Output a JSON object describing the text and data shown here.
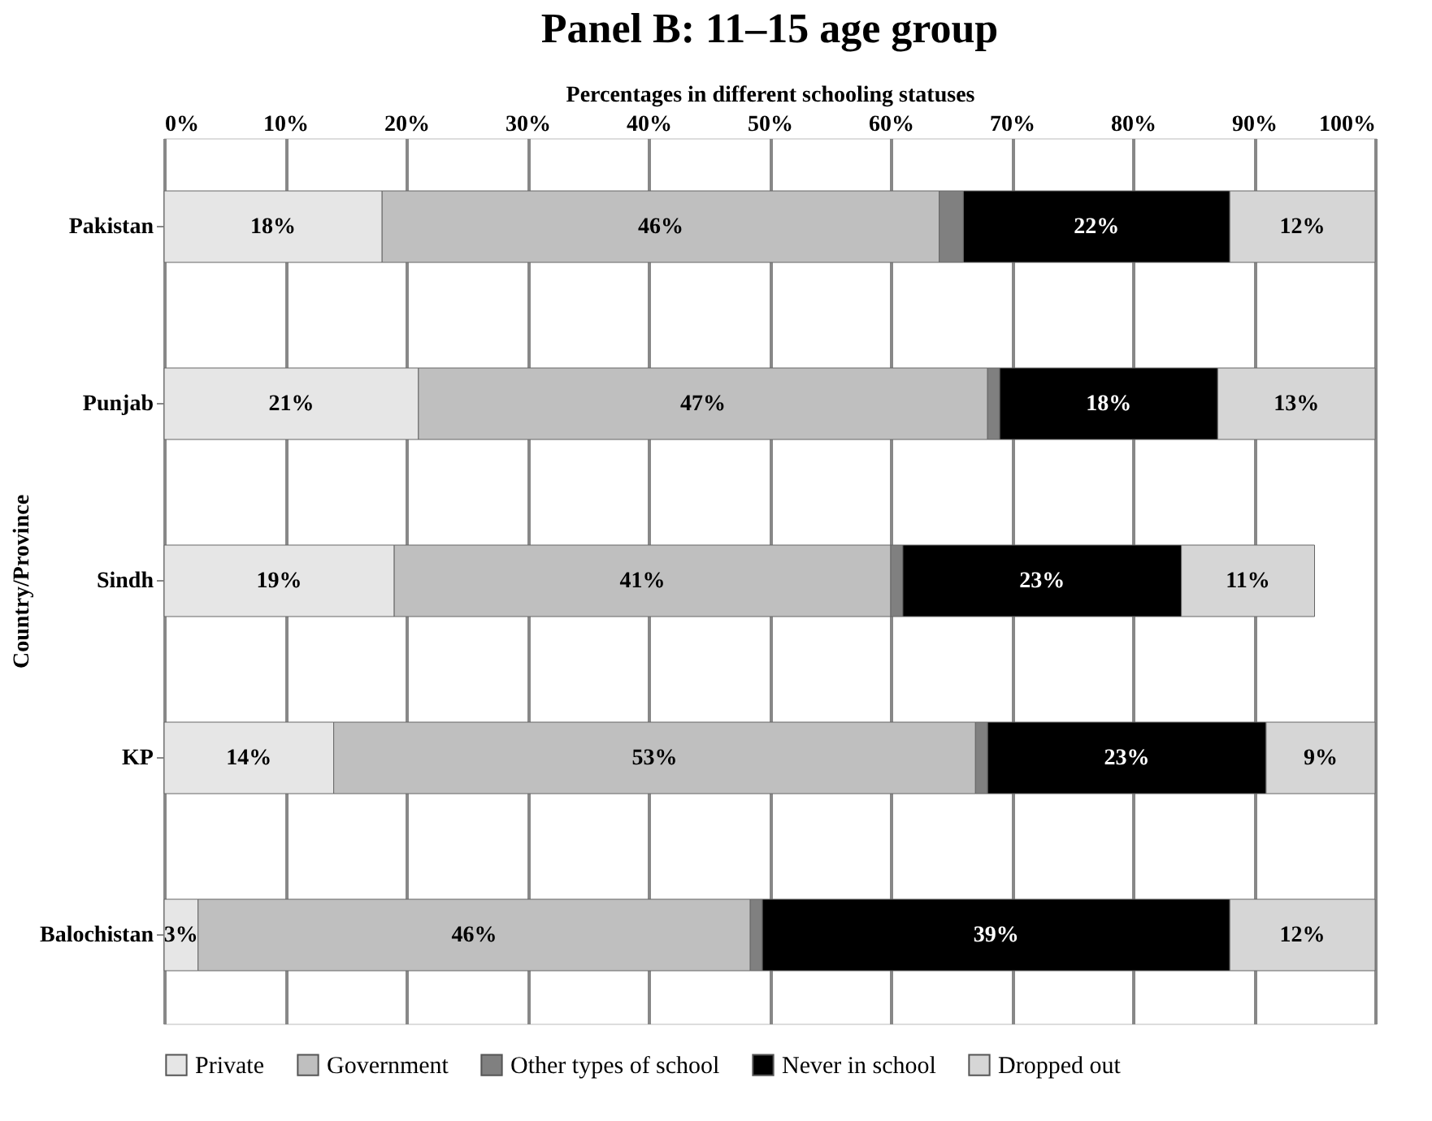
{
  "chart_data": {
    "type": "bar",
    "orientation": "horizontal",
    "stacked": true,
    "title": "Panel B: 11–15 age group",
    "xlabel": "Percentages in different schooling statuses",
    "ylabel": "Country/Province",
    "categories": [
      "Pakistan",
      "Punjab",
      "Sindh",
      "KP",
      "Balochistan"
    ],
    "series": [
      {
        "name": "Private",
        "color": "#e6e6e6",
        "values": [
          18,
          21,
          19,
          14,
          2.8
        ],
        "value_labels": [
          "18%",
          "21%",
          "19%",
          "14%",
          "3%"
        ]
      },
      {
        "name": "Government",
        "color": "#bfbfbf",
        "values": [
          46,
          47,
          41,
          53,
          45.6
        ],
        "value_labels": [
          "46%",
          "47%",
          "41%",
          "53%",
          "46%"
        ]
      },
      {
        "name": "Other types of school",
        "color": "#808080",
        "values": [
          2,
          1,
          1,
          1,
          1
        ],
        "value_labels": [
          null,
          null,
          null,
          null,
          null
        ]
      },
      {
        "name": "Never in school",
        "color": "#000000",
        "values": [
          22,
          18,
          23,
          23,
          38.6
        ],
        "value_labels": [
          "22%",
          "18%",
          "23%",
          "23%",
          "39%"
        ]
      },
      {
        "name": "Dropped out",
        "color": "#d6d6d6",
        "values": [
          12,
          13,
          11,
          9,
          12
        ],
        "value_labels": [
          "12%",
          "13%",
          "11%",
          "9%",
          "12%"
        ]
      }
    ],
    "xlim": [
      0,
      100
    ],
    "xticks": [
      {
        "value": 0,
        "label": "0%"
      },
      {
        "value": 10,
        "label": "10%"
      },
      {
        "value": 20,
        "label": "20%"
      },
      {
        "value": 30,
        "label": "30%"
      },
      {
        "value": 40,
        "label": "40%"
      },
      {
        "value": 50,
        "label": "50%"
      },
      {
        "value": 60,
        "label": "60%"
      },
      {
        "value": 70,
        "label": "70%"
      },
      {
        "value": 80,
        "label": "80%"
      },
      {
        "value": 90,
        "label": "90%"
      },
      {
        "value": 100,
        "label": "100%"
      }
    ],
    "grid": "x",
    "legend": "bottom"
  }
}
